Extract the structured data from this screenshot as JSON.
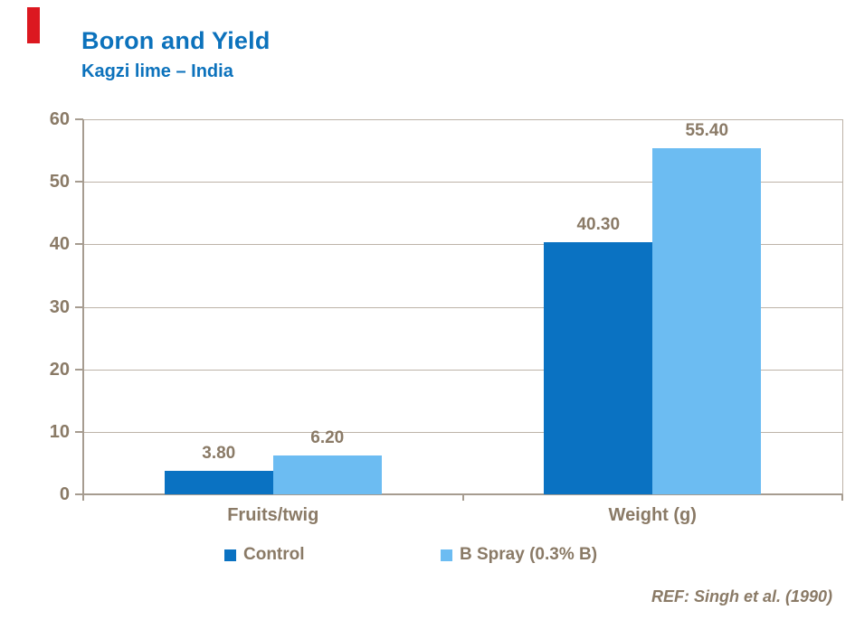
{
  "slide": {
    "title": "Boron and Yield",
    "subtitle": "Kagzi lime – India",
    "reference": "REF: Singh et al. (1990)",
    "accent_color": "#DC1820",
    "title_color": "#0C72BC"
  },
  "chart_data": {
    "type": "bar",
    "title": "Boron and Yield",
    "subtitle": "Kagzi lime – India",
    "categories": [
      "Fruits/twig",
      "Weight (g)"
    ],
    "series": [
      {
        "name": "Control",
        "color": "#0A72C2",
        "values": [
          3.8,
          40.3
        ],
        "labels": [
          "3.80",
          "40.30"
        ]
      },
      {
        "name": "B Spray (0.3% B)",
        "color": "#6CBCF2",
        "values": [
          6.2,
          55.4
        ],
        "labels": [
          "6.20",
          "55.40"
        ]
      }
    ],
    "ylim": [
      0,
      60
    ],
    "ytick_step": 10,
    "yticks": [
      "0",
      "10",
      "20",
      "30",
      "40",
      "50",
      "60"
    ],
    "grid": true,
    "legend_position": "bottom",
    "text_color": "#8A7A66",
    "gridline_color": "#BDB3A8",
    "axis_color": "#A69C90"
  }
}
